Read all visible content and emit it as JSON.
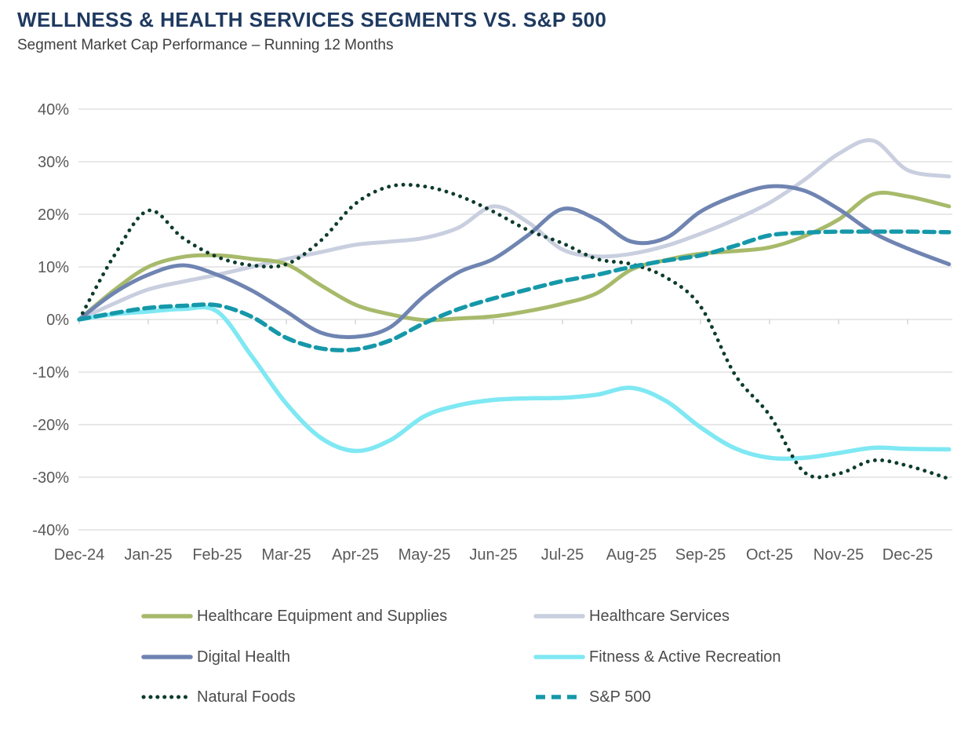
{
  "header": {
    "title": "WELLNESS & HEALTH SERVICES SEGMENTS VS. S&P 500",
    "subtitle": "Segment Market Cap Performance – Running 12 Months",
    "title_color": "#1f3a60",
    "subtitle_color": "#3f3f3f"
  },
  "chart_data": {
    "type": "line",
    "title": "WELLNESS & HEALTH SERVICES SEGMENTS VS. S&P 500",
    "subtitle": "Segment Market Cap Performance – Running 12 Months",
    "grid": "horizontal-only",
    "legend_position": "bottom-two-columns",
    "x_tick_labels": [
      "Dec-24",
      "Jan-25",
      "Feb-25",
      "Mar-25",
      "Apr-25",
      "May-25",
      "Jun-25",
      "Jul-25",
      "Aug-25",
      "Sep-25",
      "Oct-25",
      "Nov-25",
      "Dec-25"
    ],
    "y_tick_labels": [
      "40%",
      "30%",
      "20%",
      "10%",
      "0%",
      "-10%",
      "-20%",
      "-30%",
      "-40%"
    ],
    "ylim_pct": [
      -40,
      40
    ],
    "y_gridline_step_pct": 10,
    "gridline_color": "#d9d9d9",
    "tick_color": "#cfcfcf",
    "axis_label_color": "#595959",
    "sample_x_months": [
      0,
      0.5,
      1,
      1.5,
      2,
      2.5,
      3,
      3.5,
      4,
      4.5,
      5,
      5.5,
      6,
      6.5,
      7,
      7.5,
      8,
      8.5,
      9,
      9.5,
      10,
      10.5,
      11,
      11.5,
      12,
      12.6
    ],
    "z_order": [
      1,
      0,
      2,
      3,
      4,
      5
    ],
    "series": [
      {
        "name": "Healthcare Equipment and Supplies",
        "color": "#a7ba6b",
        "line_style": "solid",
        "stroke_width": 5,
        "monthly_values_pct": [
          0,
          10,
          12,
          10.5,
          3,
          0,
          0.5,
          3,
          9.5,
          12.5,
          13.5,
          19,
          23.5
        ],
        "shape_values_pct": [
          0,
          5.5,
          10,
          11.9,
          12.2,
          11.5,
          10.5,
          6.5,
          2.8,
          1,
          -0.1,
          0.2,
          0.6,
          1.6,
          3,
          5,
          9.5,
          11.3,
          12.5,
          13,
          13.7,
          15.8,
          19,
          23.8,
          23.4,
          21.5
        ]
      },
      {
        "name": "Healthcare Services",
        "color": "#c9cfdf",
        "line_style": "solid",
        "stroke_width": 5,
        "monthly_values_pct": [
          0,
          5.5,
          8.5,
          11.5,
          14,
          15.5,
          21.5,
          13.5,
          12.5,
          16.5,
          22,
          31.5,
          28.5
        ],
        "shape_values_pct": [
          0,
          3,
          5.7,
          7.2,
          8.5,
          10,
          11.5,
          12.8,
          14.2,
          14.8,
          15.5,
          17.5,
          21.5,
          18.5,
          13.3,
          12,
          12.5,
          14,
          16.3,
          19,
          22.2,
          26.5,
          31.5,
          34,
          28.4,
          27.2
        ]
      },
      {
        "name": "Digital Health",
        "color": "#6f84b1",
        "line_style": "solid",
        "stroke_width": 5,
        "monthly_values_pct": [
          0,
          8.5,
          8.5,
          1.5,
          -3.5,
          4.5,
          11.5,
          21,
          15,
          20.5,
          25.5,
          21,
          13.5
        ],
        "shape_values_pct": [
          0,
          5,
          8.5,
          10.3,
          8.5,
          5.5,
          1.5,
          -2.5,
          -3.3,
          -1.5,
          4.5,
          9,
          11.5,
          16,
          21,
          19,
          14.8,
          15.5,
          20.5,
          23.5,
          25.3,
          24.5,
          21,
          16.5,
          13.5,
          10.5
        ]
      },
      {
        "name": "Fitness & Active Recreation",
        "color": "#7fe8f3",
        "line_style": "solid",
        "stroke_width": 5.5,
        "monthly_values_pct": [
          0,
          1.5,
          1.5,
          -16,
          -25,
          -18.5,
          -15.5,
          -15,
          -13,
          -20.5,
          -26.5,
          -25.5,
          -24.5
        ],
        "shape_values_pct": [
          0,
          1,
          1.5,
          2,
          1.5,
          -7,
          -16,
          -22.5,
          -25,
          -23,
          -18.4,
          -16.3,
          -15.3,
          -15,
          -14.9,
          -14.3,
          -13,
          -15.5,
          -20.5,
          -24.5,
          -26.3,
          -26.3,
          -25.4,
          -24.4,
          -24.6,
          -24.7
        ]
      },
      {
        "name": "Natural Foods",
        "color": "#0d3b2d",
        "line_style": "dotted",
        "stroke_width": 4.8,
        "dash": "0.1 9.2",
        "legend_dash": "0.1 8.8",
        "monthly_values_pct": [
          0,
          21,
          12,
          10.5,
          22,
          25.5,
          20.5,
          14.5,
          10.5,
          2.5,
          -18,
          -29.5,
          -28
        ],
        "shape_values_pct": [
          0,
          12,
          20.7,
          15.5,
          11.9,
          10.3,
          10.5,
          15,
          22,
          25.3,
          25.3,
          23.5,
          20.5,
          17,
          14.5,
          11.5,
          10.5,
          8,
          2.5,
          -10.5,
          -18.2,
          -29,
          -29.3,
          -26.8,
          -27.8,
          -30.3
        ]
      },
      {
        "name": "S&P 500",
        "color": "#1598a9",
        "line_style": "dashed",
        "stroke_width": 5.4,
        "dash": "13 8",
        "legend_dash": "12 8",
        "monthly_values_pct": [
          0,
          2,
          2.5,
          -3.5,
          -5.5,
          -1,
          4,
          7.5,
          10,
          12,
          16,
          16.5,
          16.5
        ],
        "shape_values_pct": [
          0,
          1.2,
          2.2,
          2.6,
          2.7,
          0.5,
          -3.5,
          -5.5,
          -5.7,
          -4,
          -0.7,
          2,
          4,
          5.7,
          7.3,
          8.5,
          10,
          11.2,
          12.2,
          14,
          16,
          16.5,
          16.7,
          16.7,
          16.7,
          16.6
        ]
      }
    ]
  }
}
